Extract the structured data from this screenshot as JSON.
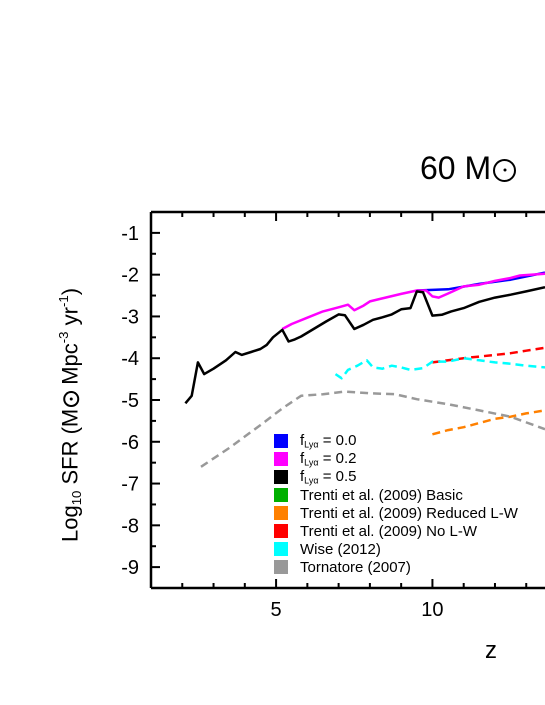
{
  "title": {
    "main": "60 M",
    "unit_symbol": "sun"
  },
  "axes": {
    "ylabel_prefix": "Log",
    "ylabel_sub": "10",
    "ylabel_mid": " SFR (M",
    "ylabel_unit": " Mpc",
    "ylabel_exp1": "-3",
    "ylabel_yr": " yr",
    "ylabel_exp2": "-1",
    "ylabel_close": ")",
    "xlabel": "z"
  },
  "legend": [
    {
      "prefix": "f",
      "sub": "Lyα",
      "label": " = 0.0",
      "color": "#0000ff"
    },
    {
      "prefix": "f",
      "sub": "Lyα",
      "label": " = 0.2",
      "color": "#ff00ff"
    },
    {
      "prefix": "f",
      "sub": "Lyα",
      "label": " = 0.5",
      "color": "#000000"
    },
    {
      "prefix": "",
      "sub": "",
      "label": "Trenti et al. (2009) Basic",
      "color": "#00b000"
    },
    {
      "prefix": "",
      "sub": "",
      "label": "Trenti et al. (2009) Reduced L-W",
      "color": "#ff8000"
    },
    {
      "prefix": "",
      "sub": "",
      "label": "Trenti et al. (2009) No L-W",
      "color": "#ff0000"
    },
    {
      "prefix": "",
      "sub": "",
      "label": "Wise (2012)",
      "color": "#00ffff"
    },
    {
      "prefix": "",
      "sub": "",
      "label": "Tornatore (2007)",
      "color": "#999999"
    }
  ],
  "chart_data": {
    "type": "line",
    "title": "60 M☉",
    "xlabel": "z",
    "ylabel": "Log10 SFR (M☉ Mpc-3 yr-1)",
    "xlim": [
      1.0,
      13.6
    ],
    "ylim": [
      -9.5,
      -0.5
    ],
    "xticks": [
      5,
      10
    ],
    "yticks": [
      -1,
      -2,
      -3,
      -4,
      -5,
      -6,
      -7,
      -8,
      -9
    ],
    "grid": false,
    "legend_position": "lower-middle",
    "series": [
      {
        "name": "f_Lyα = 0.0",
        "color": "#0000ff",
        "dash": false,
        "x": [
          9.5,
          10.5,
          11.5,
          12.5,
          13.6
        ],
        "y": [
          -2.38,
          -2.35,
          -2.22,
          -2.12,
          -1.95
        ]
      },
      {
        "name": "f_Lyα = 0.2",
        "color": "#ff00ff",
        "dash": false,
        "x": [
          5.2,
          5.5,
          6.0,
          6.5,
          7.0,
          7.3,
          7.5,
          7.8,
          8.0,
          8.5,
          9.0,
          9.5,
          9.8,
          10.0,
          10.2,
          10.5,
          11.0,
          11.5,
          12.0,
          12.5,
          12.8,
          13.6
        ],
        "y": [
          -3.3,
          -3.18,
          -3.03,
          -2.88,
          -2.78,
          -2.72,
          -2.85,
          -2.74,
          -2.64,
          -2.55,
          -2.46,
          -2.38,
          -2.38,
          -2.52,
          -2.55,
          -2.45,
          -2.28,
          -2.24,
          -2.15,
          -2.08,
          -2.02,
          -1.98
        ]
      },
      {
        "name": "f_Lyα = 0.5",
        "color": "#000000",
        "dash": false,
        "x": [
          2.1,
          2.3,
          2.5,
          2.7,
          3.0,
          3.4,
          3.7,
          3.9,
          4.2,
          4.5,
          4.7,
          4.9,
          5.2,
          5.4,
          5.6,
          5.8,
          6.2,
          6.6,
          7.0,
          7.2,
          7.5,
          7.8,
          8.1,
          8.4,
          8.7,
          9.0,
          9.3,
          9.5,
          9.7,
          10.0,
          10.3,
          10.6,
          11.0,
          11.5,
          12.0,
          12.5,
          13.0,
          13.6
        ],
        "y": [
          -5.08,
          -4.9,
          -4.1,
          -4.38,
          -4.25,
          -4.05,
          -3.85,
          -3.92,
          -3.85,
          -3.78,
          -3.68,
          -3.5,
          -3.32,
          -3.6,
          -3.55,
          -3.48,
          -3.3,
          -3.12,
          -2.95,
          -2.97,
          -3.3,
          -3.2,
          -3.08,
          -3.02,
          -2.95,
          -2.83,
          -2.8,
          -2.4,
          -2.42,
          -2.98,
          -2.96,
          -2.88,
          -2.8,
          -2.65,
          -2.55,
          -2.48,
          -2.4,
          -2.3
        ]
      },
      {
        "name": "Trenti et al. (2009) Reduced L-W",
        "color": "#ff8000",
        "dash": true,
        "x": [
          10.0,
          10.5,
          11.0,
          11.5,
          12.0,
          12.5,
          13.0,
          13.6
        ],
        "y": [
          -5.82,
          -5.72,
          -5.65,
          -5.55,
          -5.45,
          -5.4,
          -5.32,
          -5.25
        ]
      },
      {
        "name": "Trenti et al. (2009) No L-W",
        "color": "#ff0000",
        "dash": true,
        "x": [
          10.0,
          11.0,
          12.0,
          12.5,
          13.0,
          13.6
        ],
        "y": [
          -4.1,
          -4.0,
          -3.92,
          -3.88,
          -3.82,
          -3.75
        ]
      },
      {
        "name": "Wise (2012)",
        "color": "#00ffff",
        "dash": true,
        "x": [
          6.9,
          7.1,
          7.3,
          7.6,
          7.9,
          8.1,
          8.4,
          8.7,
          9.0,
          9.3,
          9.7,
          10.0,
          10.5,
          11.0,
          11.5,
          12.0,
          12.5,
          13.0,
          13.6
        ],
        "y": [
          -4.38,
          -4.48,
          -4.28,
          -4.18,
          -4.05,
          -4.22,
          -4.25,
          -4.18,
          -4.22,
          -4.28,
          -4.24,
          -4.08,
          -4.08,
          -4.0,
          -4.05,
          -4.1,
          -4.13,
          -4.18,
          -4.22
        ]
      },
      {
        "name": "Tornatore (2007)",
        "color": "#999999",
        "dash": true,
        "x": [
          2.6,
          3.5,
          4.5,
          5.2,
          5.8,
          6.5,
          7.2,
          8.0,
          8.8,
          9.5,
          10.5,
          11.5,
          12.5,
          13.6
        ],
        "y": [
          -6.6,
          -6.15,
          -5.6,
          -5.2,
          -4.9,
          -4.86,
          -4.8,
          -4.84,
          -4.86,
          -4.98,
          -5.1,
          -5.25,
          -5.4,
          -5.7
        ]
      }
    ]
  }
}
